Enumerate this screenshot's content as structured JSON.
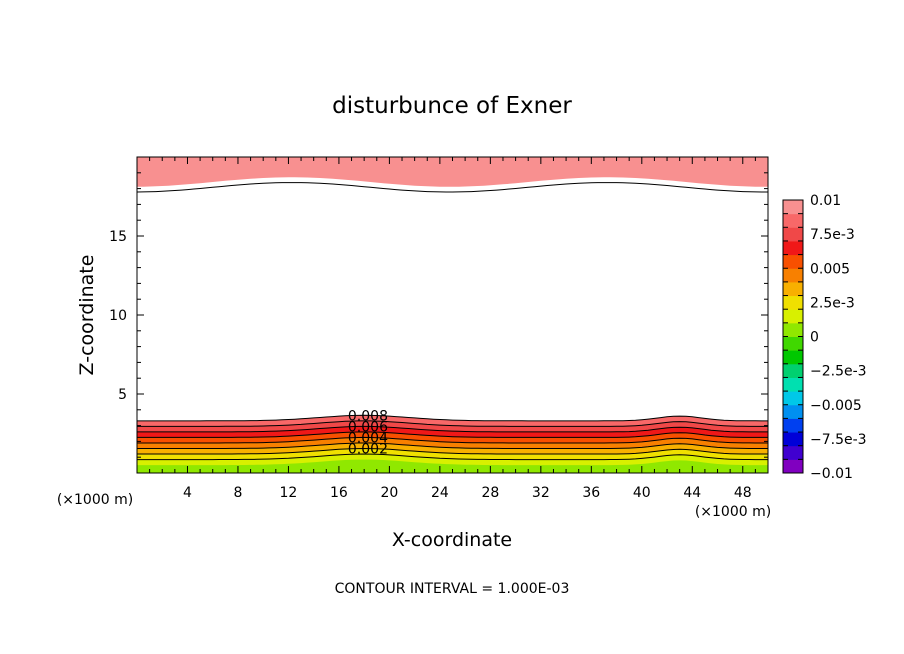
{
  "chart_data": {
    "type": "contour",
    "title": "disturbunce of Exner",
    "xlabel": "X-coordinate",
    "ylabel": "Z-coordinate",
    "x_unit": "(×1000 m)",
    "y_unit": "(×1000 m)",
    "xlim": [
      0,
      50
    ],
    "ylim": [
      0,
      20
    ],
    "x_ticks": [
      4,
      8,
      12,
      16,
      20,
      24,
      28,
      32,
      36,
      40,
      44,
      48
    ],
    "y_ticks": [
      5,
      10,
      15
    ],
    "footer": "CONTOUR INTERVAL = 1.000E-03",
    "contour_interval": 0.001,
    "contour_labels": [
      "0.008",
      "0.006",
      "0.004",
      "0.002"
    ],
    "colorbar": {
      "labels": [
        "0.01",
        "7.5e-3",
        "0.005",
        "2.5e-3",
        "0",
        "−2.5e-3",
        "−0.005",
        "−7.5e-3",
        "−0.01"
      ],
      "range": [
        -0.01,
        0.01
      ],
      "colors": [
        "#8000c0",
        "#4000d0",
        "#0000d8",
        "#0040f0",
        "#0090f0",
        "#00c8e8",
        "#00e0b0",
        "#00d070",
        "#00c800",
        "#40d800",
        "#90e800",
        "#d8f000",
        "#f0e000",
        "#f8b000",
        "#f88000",
        "#f85000",
        "#f01818",
        "#f04848",
        "#f86868",
        "#f89090"
      ]
    }
  }
}
